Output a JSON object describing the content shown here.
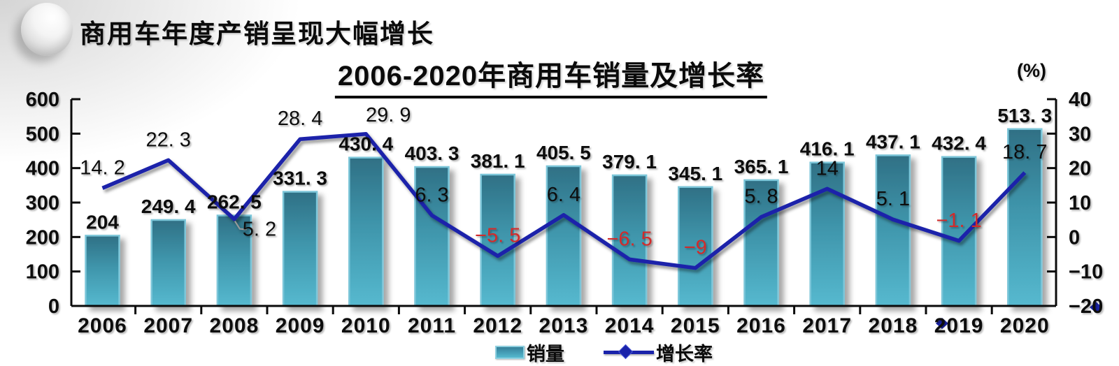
{
  "header": {
    "title": "商用车年度产销呈现大幅增长"
  },
  "chart": {
    "title": "2006-2020年商用车销量及增长率",
    "right_axis_unit": "(%)",
    "legend": [
      {
        "label": "销量",
        "type": "bar"
      },
      {
        "label": "增长率",
        "type": "line"
      }
    ]
  },
  "chart_data": {
    "type": "bar+line",
    "title": "2006-2020年商用车销量及增长率",
    "categories": [
      "2006",
      "2007",
      "2008",
      "2009",
      "2010",
      "2011",
      "2012",
      "2013",
      "2014",
      "2015",
      "2016",
      "2017",
      "2018",
      "2019",
      "2020"
    ],
    "series": [
      {
        "name": "销量",
        "type": "bar",
        "axis": "left",
        "values": [
          204,
          249.4,
          262.5,
          331.3,
          430.4,
          403.3,
          381.1,
          405.5,
          379.1,
          345.1,
          365.1,
          416.1,
          437.1,
          432.4,
          513.3
        ],
        "labels": [
          "204",
          "249. 4",
          "262. 5",
          "331. 3",
          "430. 4",
          "403. 3",
          "381. 1",
          "405. 5",
          "379. 1",
          "345. 1",
          "365. 1",
          "416. 1",
          "437. 1",
          "432. 4",
          "513. 3"
        ]
      },
      {
        "name": "增长率",
        "type": "line",
        "axis": "right",
        "values": [
          14.2,
          22.3,
          5.2,
          28.4,
          29.9,
          6.3,
          -5.5,
          6.4,
          -6.5,
          -9,
          5.8,
          14,
          5.1,
          -1.1,
          18.7
        ],
        "labels": [
          "14. 2",
          "22. 3",
          "5. 2",
          "28. 4",
          "29. 9",
          "6. 3",
          "−5. 5",
          "6. 4",
          "−6. 5",
          "−9",
          "5. 8",
          "14",
          "5. 1",
          "−1. 1",
          "18. 7"
        ]
      }
    ],
    "left_axis": {
      "range": [
        0,
        600
      ],
      "ticks": [
        0,
        100,
        200,
        300,
        400,
        500,
        600
      ],
      "tick_labels": [
        "0",
        "100",
        "200",
        "300",
        "400",
        "500",
        "600"
      ]
    },
    "right_axis": {
      "range": [
        -20,
        40
      ],
      "ticks": [
        -20,
        -10,
        0,
        10,
        20,
        30,
        40
      ],
      "tick_labels": [
        "−20",
        "−10",
        "0",
        "10",
        "20",
        "30",
        "40"
      ],
      "unit": "(%)"
    },
    "colors": {
      "bar_fill_top": "#2f7085",
      "bar_fill_mid": "#3f95ab",
      "bar_fill_bottom": "#56b9cf",
      "bar_border": "#7cc6d9",
      "line": "#1a23aa",
      "positive_label": "#0b0b0b",
      "negative_label": "#d22a2a",
      "axis": "#0b0b0b",
      "leader_line": "#9a9a9a"
    },
    "layout_hints": {
      "grid": false,
      "legend_position": "bottom",
      "default_growth_label_offset": [
        0,
        -30
      ],
      "growth_label_offsets": {
        "2": [
          36,
          14
        ],
        "4": [
          32,
          -28
        ]
      },
      "leader_line_index": 2,
      "stray_markers": [
        [
          1347,
          463
        ],
        [
          1567,
          440
        ]
      ]
    }
  }
}
